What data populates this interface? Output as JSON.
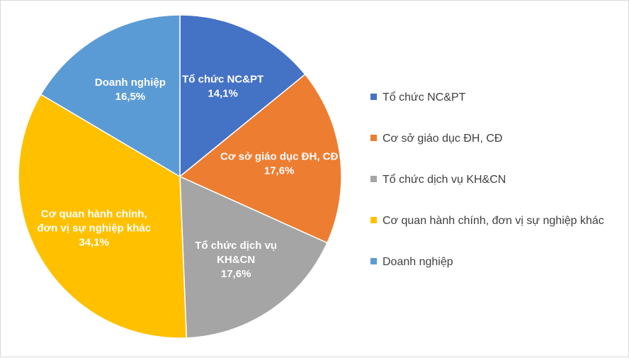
{
  "chart_data": {
    "type": "pie",
    "title": "",
    "legend_position": "right",
    "slices": [
      {
        "name": "Tổ chức NC&PT",
        "value": 14.1,
        "label_lines": [
          "Tổ chức NC&PT",
          "14,1%"
        ],
        "color": "#4472C4"
      },
      {
        "name": "Cơ sở giáo dục ĐH, CĐ",
        "value": 17.6,
        "label_lines": [
          "Cơ sở giáo dục ĐH, CĐ",
          "17,6%"
        ],
        "color": "#ED7D31"
      },
      {
        "name": "Tổ chức dịch vụ KH&CN",
        "value": 17.6,
        "label_lines": [
          "Tổ chức dịch vụ",
          "KH&CN",
          "17,6%"
        ],
        "color": "#A5A5A5"
      },
      {
        "name": "Cơ quan hành chính, đơn vị sự nghiệp khác",
        "value": 34.1,
        "label_lines": [
          "Cơ quan hành chính,",
          "đơn vị sự nghiệp khác",
          "34,1%"
        ],
        "color": "#FFC000"
      },
      {
        "name": "Doanh nghiệp",
        "value": 16.5,
        "label_lines": [
          "Doanh nghiệp",
          "16,5%"
        ],
        "color": "#5B9BD5"
      }
    ]
  }
}
